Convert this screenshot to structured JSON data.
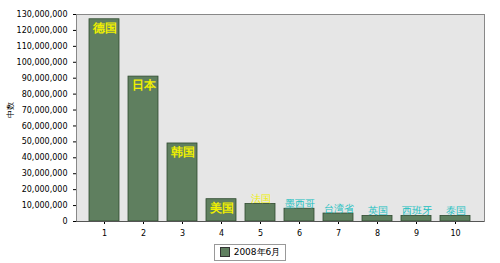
{
  "chart_data": {
    "type": "bar",
    "y_label": "中数",
    "categories": [
      "1",
      "2",
      "3",
      "4",
      "5",
      "6",
      "7",
      "8",
      "9",
      "10"
    ],
    "series": [
      {
        "name": "2008年6月",
        "color": "#5f7f5f",
        "values": [
          127000000,
          91000000,
          49000000,
          14000000,
          11000000,
          8000000,
          5000000,
          3500000,
          3500000,
          3500000
        ]
      }
    ],
    "annotations": [
      {
        "category": "1",
        "text": "德国",
        "color": "#f0f000"
      },
      {
        "category": "2",
        "text": "日本",
        "color": "#f0f000"
      },
      {
        "category": "3",
        "text": "韩国",
        "color": "#f0f000"
      },
      {
        "category": "4",
        "text": "美国",
        "color": "#f0f000"
      },
      {
        "category": "5",
        "text": "法国",
        "color": "#f0f000"
      },
      {
        "category": "6",
        "text": "墨西哥",
        "color": "#20c0c0"
      },
      {
        "category": "7",
        "text": "台湾省",
        "color": "#20c0c0"
      },
      {
        "category": "8",
        "text": "英国",
        "color": "#20c0c0"
      },
      {
        "category": "9",
        "text": "西班牙",
        "color": "#20c0c0"
      },
      {
        "category": "10",
        "text": "泰国",
        "color": "#20c0c0"
      }
    ],
    "ylim": [
      0,
      130000000
    ],
    "yticks": [
      0,
      {
        "value": 10000000,
        "label": "10,000,000"
      },
      {
        "value": 20000000,
        "label": "20,000,000"
      },
      {
        "value": 30000000,
        "label": "30,000,000"
      },
      {
        "value": 40000000,
        "label": "40,000,000"
      },
      {
        "value": 50000000,
        "label": "50,000,000"
      },
      {
        "value": 60000000,
        "label": "60,000,000"
      },
      {
        "value": 70000000,
        "label": "70,000,000"
      },
      {
        "value": 80000000,
        "label": "80,000,000"
      },
      {
        "value": 90000000,
        "label": "90,000,000"
      },
      {
        "value": 100000000,
        "label": "100,000,000"
      },
      {
        "value": 110000000,
        "label": "110,000,000"
      },
      {
        "value": 120000000,
        "label": "120,000,000"
      },
      {
        "value": 130000000,
        "label": "130,000,000"
      }
    ],
    "grid": false,
    "legend": "bottom"
  }
}
